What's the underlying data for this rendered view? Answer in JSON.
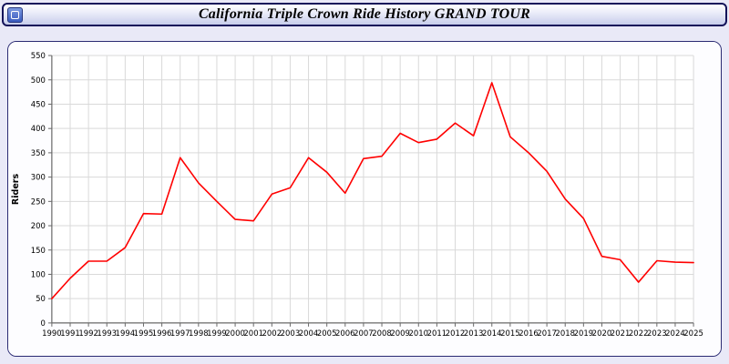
{
  "header": {
    "title": "California Triple Crown Ride History GRAND TOUR",
    "icon": "link-icon"
  },
  "colors": {
    "page_bg": "#e9e9f7",
    "panel_border": "#2a2a72",
    "grid": "#d9d9d9",
    "axis": "#6a6a6a",
    "tick_text": "#000000",
    "line": "#ff0000"
  },
  "chart_data": {
    "type": "line",
    "title": "California Triple Crown Ride History GRAND TOUR",
    "xlabel": "",
    "ylabel": "Riders",
    "ylim": [
      0,
      550
    ],
    "ytick_step": 50,
    "grid": true,
    "legend": "none",
    "x": [
      1990,
      1991,
      1992,
      1993,
      1994,
      1995,
      1996,
      1997,
      1998,
      1999,
      2000,
      2001,
      2002,
      2003,
      2004,
      2005,
      2006,
      2007,
      2008,
      2009,
      2010,
      2011,
      2012,
      2013,
      2014,
      2015,
      2016,
      2017,
      2018,
      2019,
      2020,
      2021,
      2022,
      2023,
      2024,
      2025
    ],
    "values": [
      50,
      92,
      127,
      127,
      155,
      225,
      224,
      340,
      288,
      250,
      213,
      210,
      265,
      278,
      340,
      310,
      267,
      338,
      343,
      390,
      371,
      378,
      411,
      385,
      494,
      383,
      350,
      312,
      255,
      215,
      137,
      130,
      84,
      128,
      125,
      124
    ]
  }
}
